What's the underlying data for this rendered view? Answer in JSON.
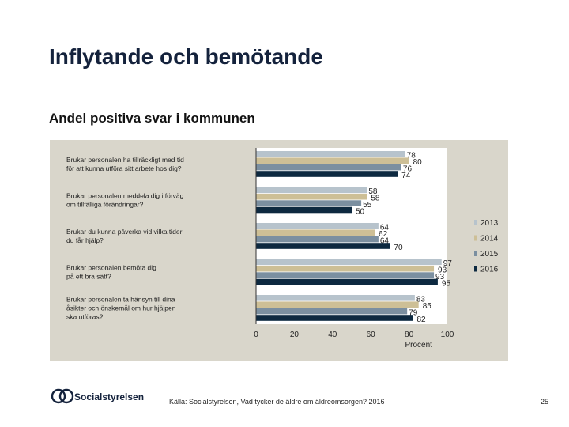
{
  "slide": {
    "title": "Inflytande och bemötande",
    "subtitle": "Andel positiva svar i kommunen",
    "source": "Källa: Socialstyrelsen, Vad tycker de äldre om äldreomsorgen? 2016",
    "page_number": "25",
    "logo_text": "Socialstyrelsen"
  },
  "chart_data": {
    "type": "bar",
    "orientation": "horizontal",
    "categories": [
      [
        "Brukar personalen ha tillräckligt med tid",
        "för att kunna utföra sitt arbete hos dig?"
      ],
      [
        "Brukar personalen meddela dig i förväg",
        "om tillfälliga förändringar?"
      ],
      [
        "Brukar du kunna påverka vid vilka tider",
        "du får hjälp?"
      ],
      [
        "Brukar personalen bemöta dig",
        "på ett bra sätt?"
      ],
      [
        "Brukar personalen ta hänsyn till dina",
        "åsikter och önskemål om hur hjälpen",
        "ska utföras?"
      ]
    ],
    "series": [
      {
        "name": "2013",
        "color": "#b7c3cc",
        "values": [
          78,
          58,
          64,
          97,
          83
        ]
      },
      {
        "name": "2014",
        "color": "#cdbf96",
        "values": [
          80,
          58,
          62,
          93,
          85
        ]
      },
      {
        "name": "2015",
        "color": "#7b8fa0",
        "values": [
          76,
          55,
          64,
          93,
          79
        ]
      },
      {
        "name": "2016",
        "color": "#0d2940",
        "values": [
          74,
          50,
          70,
          95,
          82
        ]
      }
    ],
    "x_ticks": [
      0,
      20,
      40,
      60,
      80,
      100
    ],
    "xlim": [
      0,
      100
    ],
    "xlabel": "Procent",
    "legend_position": "right"
  }
}
